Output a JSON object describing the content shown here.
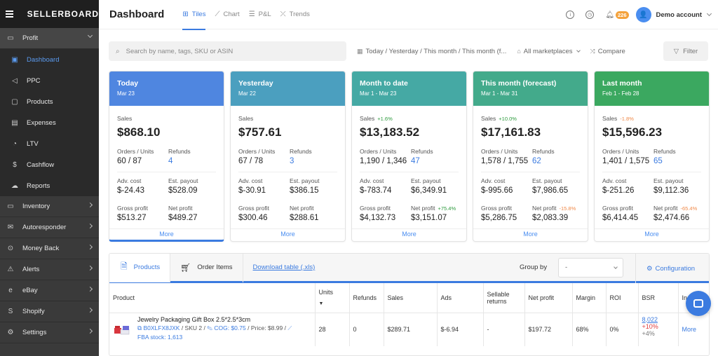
{
  "sidebar": {
    "logo": "SELLERBOARD",
    "items": [
      {
        "label": "Profit",
        "icon": "profit-icon"
      },
      {
        "label": "Dashboard",
        "icon": "dashboard-icon"
      },
      {
        "label": "PPC",
        "icon": "ppc-icon"
      },
      {
        "label": "Products",
        "icon": "products-icon"
      },
      {
        "label": "Expenses",
        "icon": "expenses-icon"
      },
      {
        "label": "LTV",
        "icon": "ltv-icon"
      },
      {
        "label": "Cashflow",
        "icon": "cashflow-icon"
      },
      {
        "label": "Reports",
        "icon": "reports-icon"
      },
      {
        "label": "Inventory",
        "icon": "inventory-icon"
      },
      {
        "label": "Autoresponder",
        "icon": "autoresponder-icon"
      },
      {
        "label": "Money Back",
        "icon": "money-back-icon"
      },
      {
        "label": "Alerts",
        "icon": "alerts-icon"
      },
      {
        "label": "eBay",
        "icon": "ebay-icon"
      },
      {
        "label": "Shopify",
        "icon": "shopify-icon"
      },
      {
        "label": "Settings",
        "icon": "settings-icon"
      }
    ]
  },
  "header": {
    "title": "Dashboard",
    "tabs": [
      {
        "label": "Tiles",
        "icon": "tiles-icon"
      },
      {
        "label": "Chart",
        "icon": "chart-icon"
      },
      {
        "label": "P&L",
        "icon": "pl-icon"
      },
      {
        "label": "Trends",
        "icon": "trends-icon"
      }
    ],
    "notification_count": "226",
    "avatar_initial": "👤",
    "account_label": "Demo account"
  },
  "search": {
    "placeholder": "Search by name, tags, SKU or ASIN"
  },
  "filters": {
    "periods": "Today / Yesterday / This month / This month (f...",
    "marketplaces": "All marketplaces",
    "compare": "Compare",
    "filter": "Filter"
  },
  "labels": {
    "sales": "Sales",
    "orders_units": "Orders / Units",
    "refunds": "Refunds",
    "adv_cost": "Adv. cost",
    "est_payout": "Est. payout",
    "gross_profit": "Gross profit",
    "net_profit": "Net profit",
    "more": "More"
  },
  "cards": [
    {
      "title": "Today",
      "date": "Mar 23",
      "color": "#4f86e0",
      "sales": "$868.10",
      "sales_delta": "",
      "orders_units": "60 / 87",
      "refunds": "4",
      "adv_cost": "$-24.43",
      "est_payout": "$528.09",
      "gross_profit": "$513.27",
      "net_profit": "$489.27",
      "net_delta": ""
    },
    {
      "title": "Yesterday",
      "date": "Mar 22",
      "color": "#4b9fbf",
      "sales": "$757.61",
      "sales_delta": "",
      "orders_units": "67 / 78",
      "refunds": "3",
      "adv_cost": "$-30.91",
      "est_payout": "$386.15",
      "gross_profit": "$300.46",
      "net_profit": "$288.61",
      "net_delta": ""
    },
    {
      "title": "Month to date",
      "date": "Mar 1 - Mar 23",
      "color": "#45a9a4",
      "sales": "$13,183.52",
      "sales_delta": "+1.6%",
      "orders_units": "1,190 / 1,346",
      "refunds": "47",
      "adv_cost": "$-783.74",
      "est_payout": "$6,349.91",
      "gross_profit": "$4,132.73",
      "net_profit": "$3,151.07",
      "net_delta": "+75.4%"
    },
    {
      "title": "This month (forecast)",
      "date": "Mar 1 - Mar 31",
      "color": "#43aa8b",
      "sales": "$17,161.83",
      "sales_delta": "+10.0%",
      "orders_units": "1,578 / 1,755",
      "refunds": "62",
      "adv_cost": "$-995.66",
      "est_payout": "$7,986.65",
      "gross_profit": "$5,286.75",
      "net_profit": "$2,083.39",
      "net_delta": "-15.8%"
    },
    {
      "title": "Last month",
      "date": "Feb 1 - Feb 28",
      "color": "#3ba860",
      "sales": "$15,596.23",
      "sales_delta": "-1.8%",
      "orders_units": "1,401 / 1,575",
      "refunds": "65",
      "adv_cost": "$-251.26",
      "est_payout": "$9,112.36",
      "gross_profit": "$6,414.45",
      "net_profit": "$2,474.66",
      "net_delta": "-65.4%"
    }
  ],
  "table": {
    "tabs": [
      "Products",
      "Order Items"
    ],
    "download": "Download table (.xls)",
    "group_by_label": "Group by",
    "group_by_value": "-",
    "configuration": "Configuration",
    "columns": [
      "Product",
      "Units",
      "Refunds",
      "Sales",
      "Ads",
      "Sellable returns",
      "Net profit",
      "Margin",
      "ROI",
      "BSR",
      "In"
    ],
    "rows": [
      {
        "name": "Jewelry Packaging Gift Box 2.5*2.5*3cm",
        "asin": "B0XLFX8JXK",
        "sku": "SKU 2",
        "cog": "COG: $0.75",
        "price": "Price: $8.99",
        "fba": "FBA stock: 1,613",
        "units": "28",
        "refunds": "0",
        "sales": "$289.71",
        "ads": "$-6.94",
        "sellable_returns": "-",
        "net_profit": "$197.72",
        "margin": "68%",
        "roi": "0%",
        "bsr": "8,022",
        "bsr_delta1": "+10%",
        "bsr_delta2": "+4%",
        "more": "More"
      }
    ]
  }
}
